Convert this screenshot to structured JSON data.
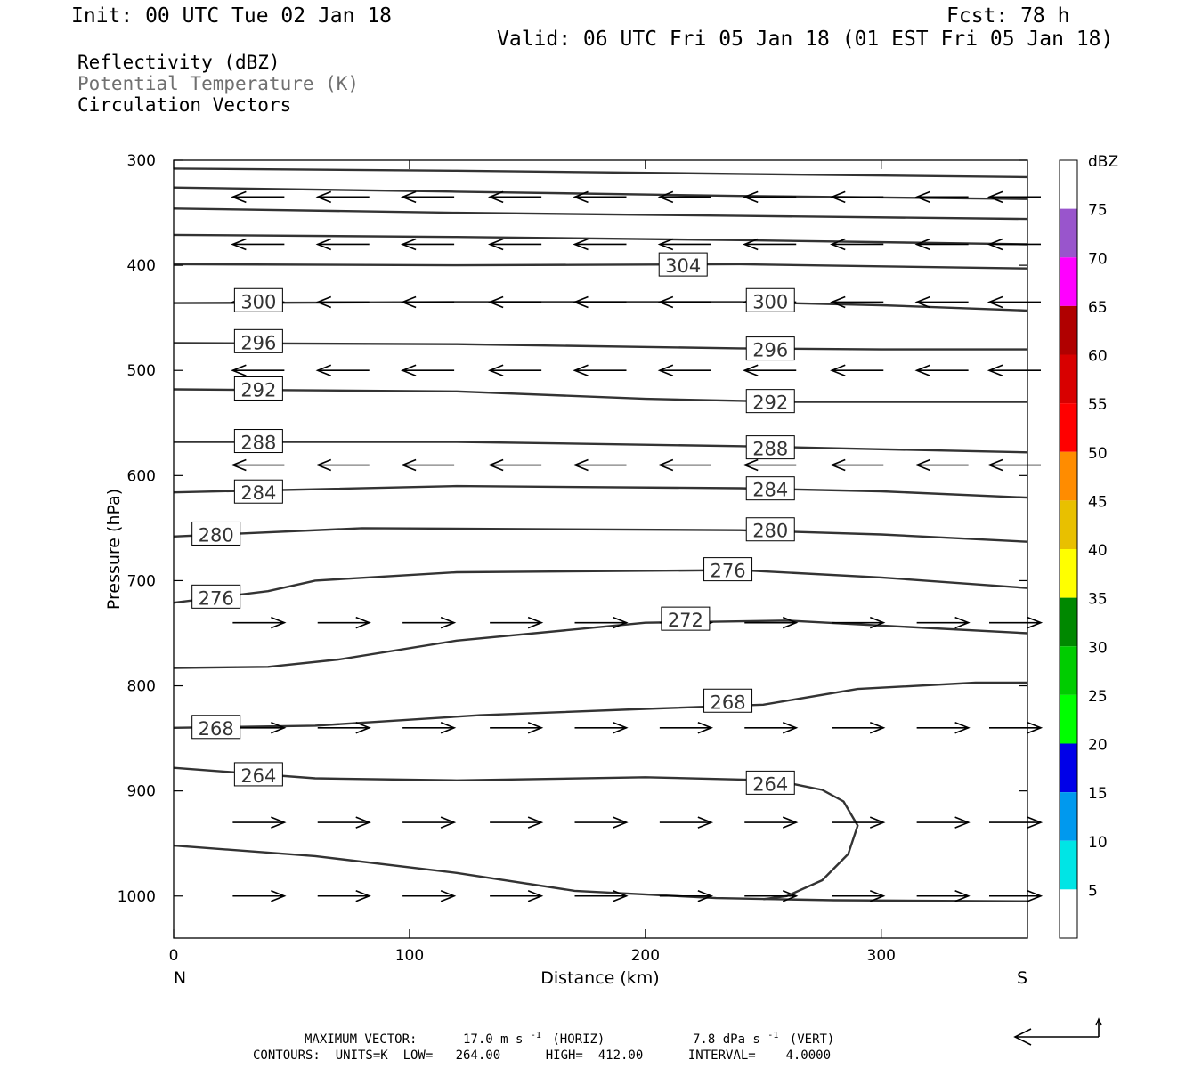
{
  "header": {
    "init": "Init: 00 UTC Tue 02 Jan 18",
    "fcst": "Fcst:   78 h",
    "valid": "Valid: 06 UTC Fri 05 Jan 18 (01 EST Fri 05 Jan 18)"
  },
  "fields": {
    "line1": "Reflectivity (dBZ)",
    "line2": "Potential Temperature (K)",
    "line3": "Circulation Vectors",
    "line2_color": "#707070"
  },
  "footer": {
    "max_vector_label": "MAXIMUM VECTOR:",
    "max_vector_horiz": "17.0 m s",
    "max_vector_horiz_exp": "-1",
    "max_vector_horiz_tail": "(HORIZ)",
    "max_vector_vert": "7.8 dPa s",
    "max_vector_vert_exp": "-1",
    "max_vector_vert_tail": "(VERT)",
    "contours": "CONTOURS:  UNITS=K  LOW=   264.00      HIGH=  412.00      INTERVAL=    4.0000"
  },
  "chart_data": {
    "type": "cross-section",
    "xlabel": "Distance (km)",
    "ylabel": "Pressure (hPa)",
    "xlim": [
      0,
      362
    ],
    "ylim": [
      1040,
      300
    ],
    "x_ticks": [
      0,
      100,
      200,
      300
    ],
    "y_ticks": [
      300,
      400,
      500,
      600,
      700,
      800,
      900,
      1000
    ],
    "x_end_labels": {
      "left": "N",
      "right": "S"
    },
    "colorbar": {
      "unit": "dBZ",
      "ticks": [
        5,
        10,
        15,
        20,
        25,
        30,
        35,
        40,
        45,
        50,
        55,
        60,
        65,
        70,
        75
      ],
      "colors": [
        "#ffffff",
        "#00e5e5",
        "#0099ee",
        "#0000e8",
        "#00ff00",
        "#00cc00",
        "#008800",
        "#ffff00",
        "#e8c000",
        "#ff8c00",
        "#ff0000",
        "#d80000",
        "#b00000",
        "#ff00ff",
        "#9955cc",
        "#ffffff"
      ]
    },
    "theta_contours": [
      {
        "label": "",
        "points": [
          [
            0,
            308
          ],
          [
            120,
            310
          ],
          [
            240,
            313
          ],
          [
            362,
            316
          ]
        ]
      },
      {
        "label": "",
        "points": [
          [
            0,
            326
          ],
          [
            120,
            330
          ],
          [
            240,
            334
          ],
          [
            362,
            337
          ]
        ]
      },
      {
        "label": "",
        "points": [
          [
            0,
            346
          ],
          [
            120,
            350
          ],
          [
            240,
            353
          ],
          [
            362,
            356
          ]
        ]
      },
      {
        "label": "",
        "points": [
          [
            0,
            371
          ],
          [
            120,
            373
          ],
          [
            240,
            376
          ],
          [
            362,
            380
          ]
        ]
      },
      {
        "label": "304",
        "label_at": [
          216,
          400
        ],
        "points": [
          [
            0,
            399
          ],
          [
            120,
            400
          ],
          [
            240,
            399
          ],
          [
            300,
            401
          ],
          [
            362,
            403
          ]
        ]
      },
      {
        "label": "300",
        "label_at": [
          36,
          434
        ],
        "label_at2": [
          253,
          434
        ],
        "points": [
          [
            0,
            436
          ],
          [
            120,
            435
          ],
          [
            240,
            435
          ],
          [
            300,
            438
          ],
          [
            362,
            443
          ]
        ]
      },
      {
        "label": "296",
        "label_at": [
          36,
          473
        ],
        "label_at2": [
          253,
          480
        ],
        "points": [
          [
            0,
            474
          ],
          [
            120,
            475
          ],
          [
            240,
            479
          ],
          [
            300,
            480
          ],
          [
            362,
            480
          ]
        ]
      },
      {
        "label": "292",
        "label_at": [
          36,
          518
        ],
        "label_at2": [
          253,
          530
        ],
        "points": [
          [
            0,
            518
          ],
          [
            120,
            520
          ],
          [
            200,
            527
          ],
          [
            262,
            530
          ],
          [
            362,
            530
          ]
        ]
      },
      {
        "label": "288",
        "label_at": [
          36,
          568
        ],
        "label_at2": [
          253,
          574
        ],
        "points": [
          [
            0,
            568
          ],
          [
            120,
            568
          ],
          [
            240,
            572
          ],
          [
            300,
            575
          ],
          [
            362,
            578
          ]
        ]
      },
      {
        "label": "284",
        "label_at": [
          36,
          616
        ],
        "label_at2": [
          253,
          613
        ],
        "points": [
          [
            0,
            616
          ],
          [
            120,
            610
          ],
          [
            240,
            612
          ],
          [
            300,
            615
          ],
          [
            362,
            621
          ]
        ]
      },
      {
        "label": "280",
        "label_at": [
          18,
          656
        ],
        "label_at2": [
          253,
          652
        ],
        "points": [
          [
            0,
            658
          ],
          [
            80,
            650
          ],
          [
            240,
            652
          ],
          [
            300,
            656
          ],
          [
            362,
            663
          ]
        ]
      },
      {
        "label": "276",
        "label_at": [
          18,
          716
        ],
        "label_at2": [
          235,
          690
        ],
        "points": [
          [
            0,
            721
          ],
          [
            40,
            710
          ],
          [
            60,
            700
          ],
          [
            120,
            692
          ],
          [
            240,
            690
          ],
          [
            300,
            697
          ],
          [
            362,
            707
          ]
        ]
      },
      {
        "label": "272",
        "label_at": [
          217,
          737
        ],
        "points": [
          [
            0,
            783
          ],
          [
            40,
            782
          ],
          [
            70,
            775
          ],
          [
            120,
            757
          ],
          [
            200,
            740
          ],
          [
            260,
            738
          ],
          [
            362,
            750
          ]
        ]
      },
      {
        "label": "268",
        "label_at": [
          235,
          815
        ],
        "label_at2": [
          18,
          840
        ],
        "points": [
          [
            0,
            840
          ],
          [
            60,
            838
          ],
          [
            130,
            828
          ],
          [
            200,
            822
          ],
          [
            250,
            818
          ],
          [
            290,
            803
          ],
          [
            340,
            797
          ],
          [
            362,
            797
          ]
        ]
      },
      {
        "label": "264",
        "label_at": [
          36,
          885
        ],
        "label_at2": [
          253,
          893
        ],
        "points": [
          [
            0,
            878
          ],
          [
            60,
            888
          ],
          [
            120,
            890
          ],
          [
            200,
            887
          ],
          [
            255,
            890
          ],
          [
            275,
            899
          ],
          [
            284,
            910
          ],
          [
            290,
            933
          ],
          [
            286,
            960
          ],
          [
            275,
            985
          ],
          [
            260,
            1000
          ],
          [
            250,
            1003
          ]
        ]
      },
      {
        "label": "",
        "points": [
          [
            0,
            952
          ],
          [
            60,
            962
          ],
          [
            120,
            978
          ],
          [
            170,
            995
          ],
          [
            230,
            1002
          ],
          [
            280,
            1004
          ],
          [
            362,
            1005
          ]
        ]
      }
    ],
    "circulation_vectors": [
      {
        "y": 335,
        "x": [
          36,
          72,
          108,
          145,
          181,
          217,
          253,
          290,
          326,
          362
        ],
        "u": [
          -1,
          -1,
          -1,
          -1,
          -1,
          -1,
          -1,
          -1,
          -1,
          -1
        ]
      },
      {
        "y": 380,
        "x": [
          36,
          72,
          108,
          145,
          181,
          217,
          253,
          290,
          326,
          362
        ],
        "u": [
          -1,
          -1,
          -1,
          -1,
          -1,
          -1,
          -1,
          -1,
          -1,
          -1
        ]
      },
      {
        "y": 435,
        "x": [
          36,
          72,
          108,
          145,
          181,
          217,
          253,
          290,
          326,
          362
        ],
        "u": [
          -1,
          -1,
          -1,
          -1,
          -1,
          -1,
          -1,
          -1,
          -1,
          -1
        ]
      },
      {
        "y": 500,
        "x": [
          36,
          72,
          108,
          145,
          181,
          217,
          253,
          290,
          326,
          362
        ],
        "u": [
          -1,
          -1,
          -1,
          -1,
          -1,
          -1,
          -1,
          -1,
          -1,
          -1
        ]
      },
      {
        "y": 590,
        "x": [
          36,
          72,
          108,
          145,
          181,
          217,
          253,
          290,
          326,
          362
        ],
        "u": [
          -1,
          -1,
          -1,
          -1,
          -1,
          -1,
          -1,
          -1,
          -1,
          -1
        ]
      },
      {
        "y": 740,
        "x": [
          36,
          72,
          108,
          145,
          181,
          217,
          253,
          290,
          326,
          362
        ],
        "u": [
          1,
          1,
          1,
          1,
          1,
          1,
          1,
          1,
          1,
          1
        ]
      },
      {
        "y": 840,
        "x": [
          36,
          72,
          108,
          145,
          181,
          217,
          253,
          290,
          326,
          362
        ],
        "u": [
          1,
          1,
          1,
          1,
          1,
          1,
          1,
          1,
          1,
          1
        ]
      },
      {
        "y": 930,
        "x": [
          36,
          72,
          108,
          145,
          181,
          217,
          253,
          290,
          326,
          362
        ],
        "u": [
          1,
          1,
          1,
          1,
          1,
          1,
          1,
          1,
          1,
          1
        ]
      },
      {
        "y": 1000,
        "x": [
          36,
          72,
          108,
          145,
          181,
          217,
          253,
          290,
          326,
          362
        ],
        "u": [
          1,
          1,
          1,
          1,
          1,
          1,
          1,
          1,
          1,
          1
        ]
      }
    ]
  }
}
